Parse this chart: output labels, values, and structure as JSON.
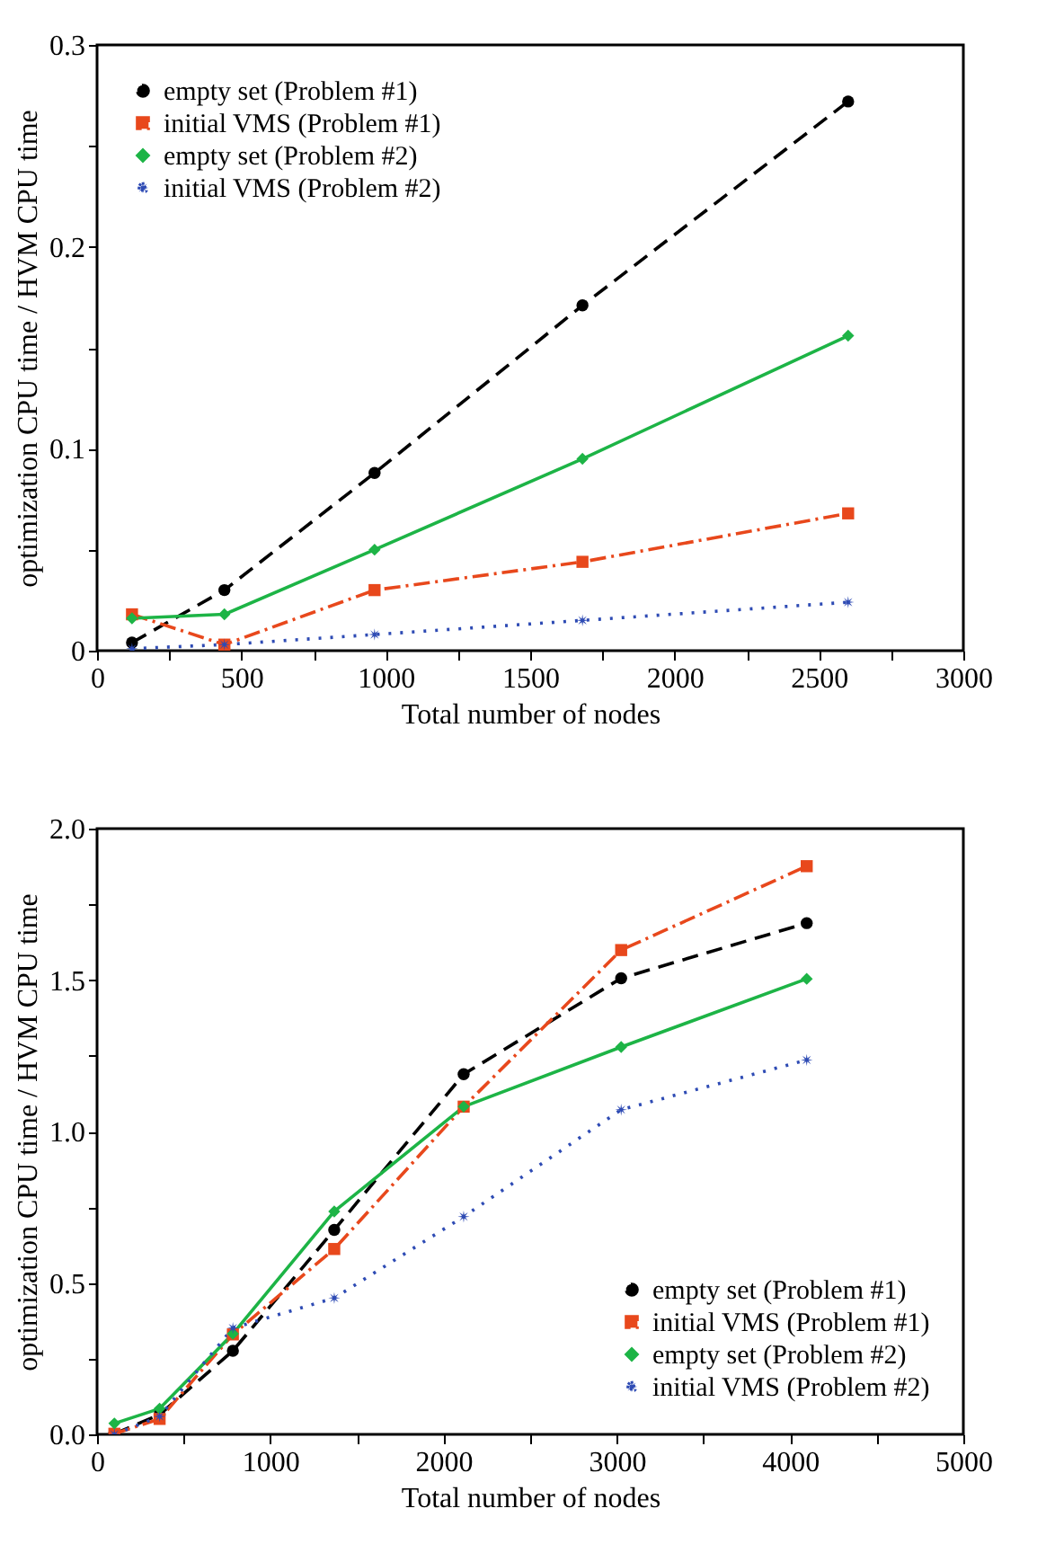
{
  "chart_data": [
    {
      "type": "line",
      "xlabel": "Total number of nodes",
      "ylabel": "optimization CPU time / HVM CPU time",
      "x": [
        121,
        441,
        961,
        1681,
        2601
      ],
      "xlim": [
        0,
        3000
      ],
      "ylim": [
        0,
        0.3
      ],
      "xticks": [
        0,
        {
          "value": 250,
          "label": null
        },
        500,
        {
          "value": 750,
          "label": null
        },
        1000,
        {
          "value": 1250,
          "label": null
        },
        1500,
        {
          "value": 1750,
          "label": null
        },
        2000,
        {
          "value": 2250,
          "label": null
        },
        2500,
        {
          "value": 2750,
          "label": null
        },
        3000
      ],
      "yticks": [
        0,
        {
          "value": 0.05,
          "label": null
        },
        0.1,
        {
          "value": 0.15,
          "label": null
        },
        0.2,
        {
          "value": 0.25,
          "label": null
        },
        0.3
      ],
      "grid": false,
      "legend": "top left",
      "series": [
        {
          "name": "empty set (Problem #1)",
          "color": "#000000",
          "marker": "circle",
          "line_style": "dashed",
          "values": [
            0.004,
            0.03,
            0.088,
            0.171,
            0.272
          ]
        },
        {
          "name": "initial VMS (Problem #1)",
          "color": "#e8481c",
          "marker": "square",
          "line_style": "dashdot",
          "values": [
            0.018,
            0.003,
            0.03,
            0.044,
            0.068
          ]
        },
        {
          "name": "empty set (Problem #2)",
          "color": "#1db446",
          "marker": "diamond",
          "line_style": "solid",
          "values": [
            0.016,
            0.018,
            0.05,
            0.095,
            0.156
          ]
        },
        {
          "name": "initial VMS (Problem #2)",
          "color": "#2e4bb4",
          "marker": "star",
          "line_style": "dotted",
          "values": [
            0.001,
            0.003,
            0.008,
            0.015,
            0.024
          ]
        }
      ]
    },
    {
      "type": "line",
      "xlabel": "Total number of nodes",
      "ylabel": "optimization CPU time / HVM CPU time",
      "x": [
        100,
        361,
        784,
        1369,
        2116,
        3025,
        4096
      ],
      "xlim": [
        0,
        5000
      ],
      "ylim": [
        0,
        2.0
      ],
      "xticks": [
        0,
        {
          "value": 500,
          "label": null
        },
        1000,
        {
          "value": 1500,
          "label": null
        },
        2000,
        {
          "value": 2500,
          "label": null
        },
        3000,
        {
          "value": 3500,
          "label": null
        },
        4000,
        {
          "value": 4500,
          "label": null
        },
        5000
      ],
      "yticks": [
        {
          "value": 0,
          "label": "0.0"
        },
        {
          "value": 0.25,
          "label": null
        },
        0.5,
        {
          "value": 0.75,
          "label": null
        },
        {
          "value": 1,
          "label": "1.0"
        },
        {
          "value": 1.25,
          "label": null
        },
        1.5,
        {
          "value": 1.75,
          "label": null
        },
        {
          "value": 2,
          "label": "2.0"
        }
      ],
      "grid": false,
      "legend": "bottom right",
      "series": [
        {
          "name": "empty set (Problem #1)",
          "color": "#000000",
          "marker": "circle",
          "line_style": "dashed",
          "values": [
            0.002,
            0.065,
            0.276,
            0.675,
            1.189,
            1.506,
            1.688
          ]
        },
        {
          "name": "initial VMS (Problem #1)",
          "color": "#e8481c",
          "marker": "square",
          "line_style": "dashdot",
          "values": [
            0.002,
            0.051,
            0.33,
            0.612,
            1.082,
            1.599,
            1.876
          ]
        },
        {
          "name": "empty set (Problem #2)",
          "color": "#1db446",
          "marker": "diamond",
          "line_style": "solid",
          "values": [
            0.036,
            0.085,
            0.332,
            0.736,
            1.082,
            1.279,
            1.504
          ]
        },
        {
          "name": "initial VMS (Problem #2)",
          "color": "#2e4bb4",
          "marker": "star",
          "line_style": "dotted",
          "values": [
            0.0,
            0.059,
            0.351,
            0.45,
            0.719,
            1.072,
            1.236
          ]
        }
      ]
    }
  ]
}
